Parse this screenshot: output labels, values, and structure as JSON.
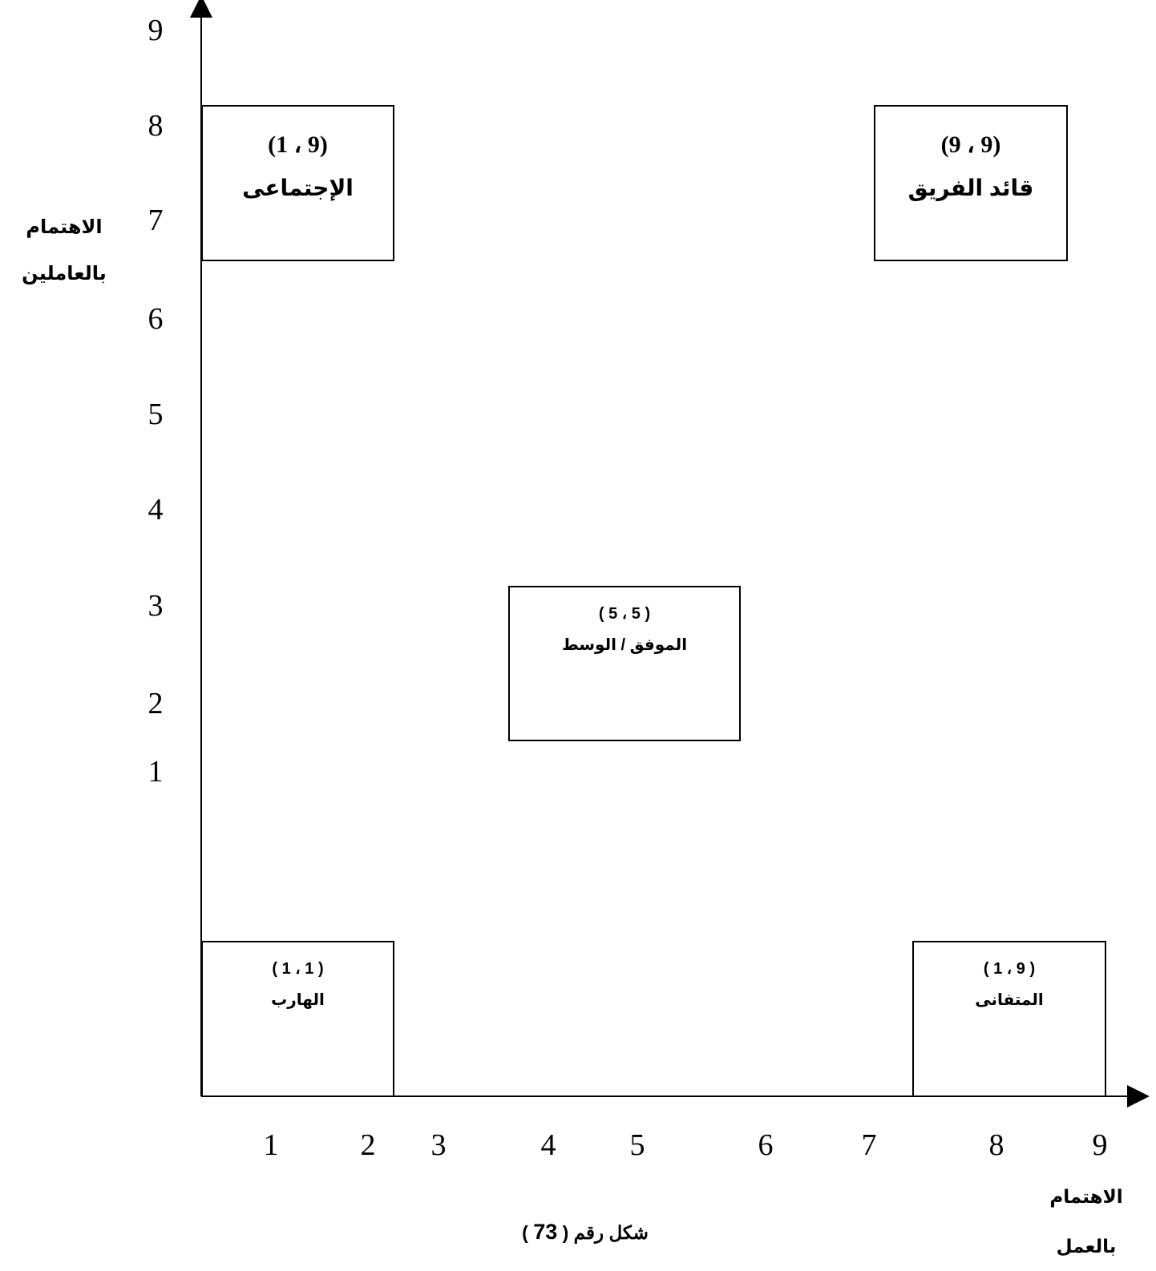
{
  "y_axis": {
    "title_line1": "الاهتمام",
    "title_line2": "بالعاملين",
    "ticks": [
      "1",
      "2",
      "3",
      "4",
      "5",
      "6",
      "7",
      "8",
      "9"
    ]
  },
  "x_axis": {
    "title_line1": "الاهتمام",
    "title_line2": "بالعمل",
    "ticks": [
      "1",
      "2",
      "3",
      "4",
      "5",
      "6",
      "7",
      "8",
      "9"
    ]
  },
  "styles": [
    {
      "id": "social",
      "coord": "(1 ، 9)",
      "name": "الإجتماعى"
    },
    {
      "id": "team",
      "coord": "(9 ، 9)",
      "name": "قائد الفريق"
    },
    {
      "id": "middle",
      "coord": "( 5 ، 5 )",
      "name": "الموفق / الوسط"
    },
    {
      "id": "escapist",
      "coord": "( 1 ، 1 )",
      "name": "الهارب"
    },
    {
      "id": "devoted",
      "coord": "( 1 ، 9 )",
      "name": "المتفانى"
    }
  ],
  "caption": {
    "prefix": "شكل رقم (",
    "number": "73",
    "suffix": ")"
  }
}
